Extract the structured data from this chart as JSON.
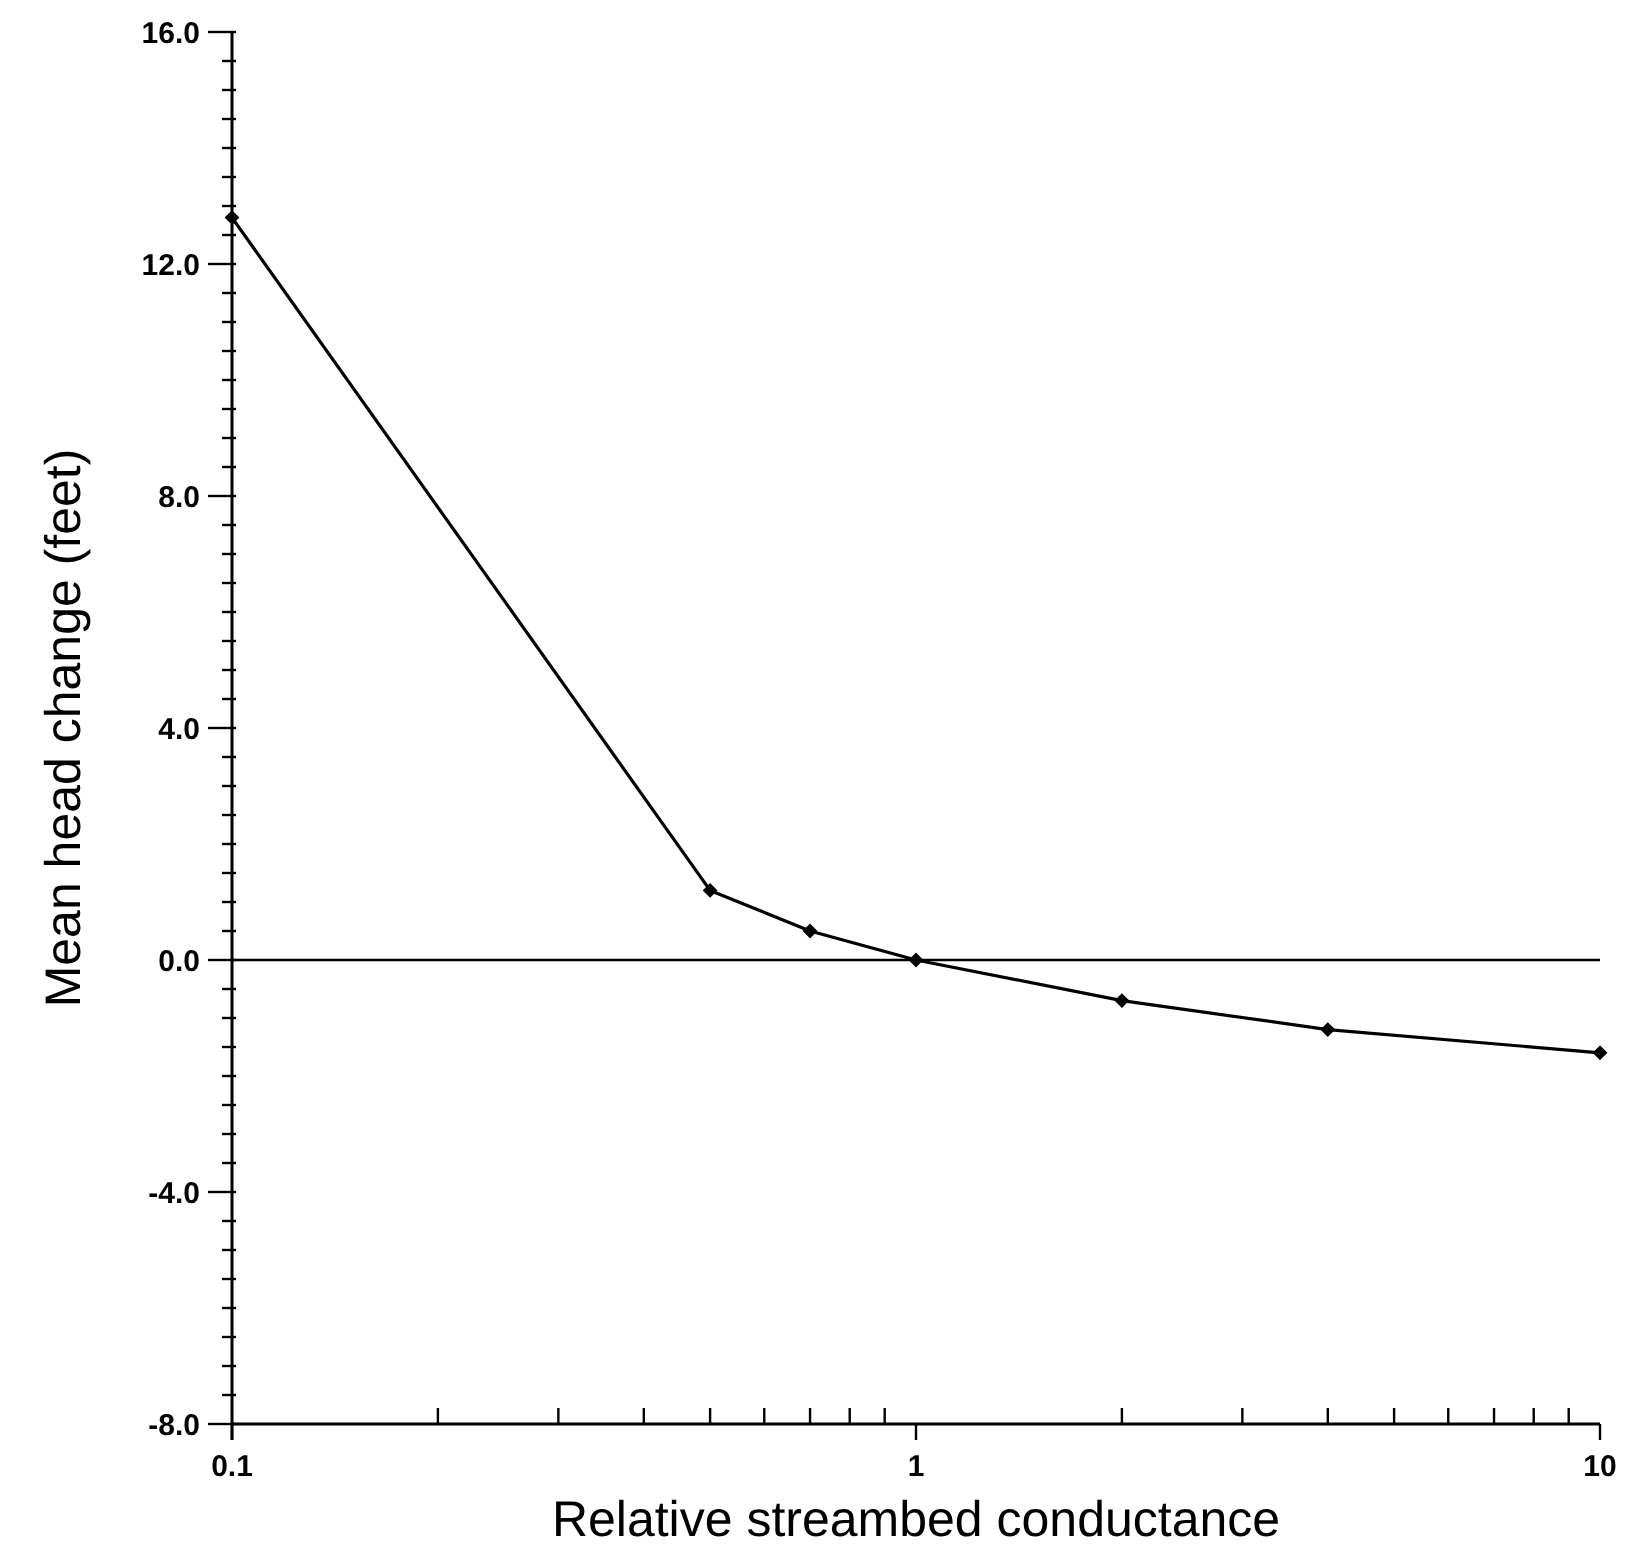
{
  "chart_data": {
    "type": "line",
    "xlabel": "Relative streambed conductance",
    "ylabel": "Mean head change (feet)",
    "log": "x",
    "x": [
      0.1,
      0.5,
      0.7,
      1,
      2,
      4,
      10
    ],
    "series": [
      {
        "color": "#000000",
        "values": [
          12.8,
          1.2,
          0.5,
          0.0,
          -0.7,
          -1.2,
          -1.6
        ]
      }
    ],
    "marker": "diamond",
    "line_style": "solid",
    "grid": false,
    "xlim": [
      0.1,
      10
    ],
    "xticks": [
      0.1,
      {
        "value": 0.2,
        "label": null
      },
      {
        "value": 0.3,
        "label": null
      },
      {
        "value": 0.4,
        "label": null
      },
      {
        "value": 0.5,
        "label": null
      },
      {
        "value": 0.6,
        "label": null
      },
      {
        "value": 0.7,
        "label": null
      },
      {
        "value": 0.8,
        "label": null
      },
      {
        "value": 0.9,
        "label": null
      },
      1,
      {
        "value": 2,
        "label": null
      },
      {
        "value": 3,
        "label": null
      },
      {
        "value": 4,
        "label": null
      },
      {
        "value": 5,
        "label": null
      },
      {
        "value": 6,
        "label": null
      },
      {
        "value": 7,
        "label": null
      },
      {
        "value": 8,
        "label": null
      },
      {
        "value": 9,
        "label": null
      },
      10
    ],
    "ylim": [
      -8,
      16
    ],
    "yticks": [
      {
        "value": -8,
        "label": "-8.0"
      },
      {
        "value": -7.5,
        "label": null
      },
      {
        "value": -7,
        "label": null
      },
      {
        "value": -6.5,
        "label": null
      },
      {
        "value": -6,
        "label": null
      },
      {
        "value": -5.5,
        "label": null
      },
      {
        "value": -5,
        "label": null
      },
      {
        "value": -4.5,
        "label": null
      },
      {
        "value": -4,
        "label": "-4.0"
      },
      {
        "value": -3.5,
        "label": null
      },
      {
        "value": -3,
        "label": null
      },
      {
        "value": -2.5,
        "label": null
      },
      {
        "value": -2,
        "label": null
      },
      {
        "value": -1.5,
        "label": null
      },
      {
        "value": -1,
        "label": null
      },
      {
        "value": -0.5,
        "label": null
      },
      {
        "value": 0,
        "label": "0.0"
      },
      {
        "value": 0.5,
        "label": null
      },
      {
        "value": 1,
        "label": null
      },
      {
        "value": 1.5,
        "label": null
      },
      {
        "value": 2,
        "label": null
      },
      {
        "value": 2.5,
        "label": null
      },
      {
        "value": 3,
        "label": null
      },
      {
        "value": 3.5,
        "label": null
      },
      {
        "value": 4,
        "label": "4.0"
      },
      {
        "value": 4.5,
        "label": null
      },
      {
        "value": 5,
        "label": null
      },
      {
        "value": 5.5,
        "label": null
      },
      {
        "value": 6,
        "label": null
      },
      {
        "value": 6.5,
        "label": null
      },
      {
        "value": 7,
        "label": null
      },
      {
        "value": 7.5,
        "label": null
      },
      {
        "value": 8,
        "label": "8.0"
      },
      {
        "value": 8.5,
        "label": null
      },
      {
        "value": 9,
        "label": null
      },
      {
        "value": 9.5,
        "label": null
      },
      {
        "value": 10,
        "label": null
      },
      {
        "value": 10.5,
        "label": null
      },
      {
        "value": 11,
        "label": null
      },
      {
        "value": 11.5,
        "label": null
      },
      {
        "value": 12,
        "label": "12.0"
      },
      {
        "value": 12.5,
        "label": null
      },
      {
        "value": 13,
        "label": null
      },
      {
        "value": 13.5,
        "label": null
      },
      {
        "value": 14,
        "label": null
      },
      {
        "value": 14.5,
        "label": null
      },
      {
        "value": 15,
        "label": null
      },
      {
        "value": 15.5,
        "label": null
      },
      {
        "value": 16,
        "label": "16.0"
      }
    ],
    "ref_lines": [
      {
        "axis": "y",
        "value": 0,
        "color": "#000000",
        "line_style": "solid"
      }
    ]
  }
}
